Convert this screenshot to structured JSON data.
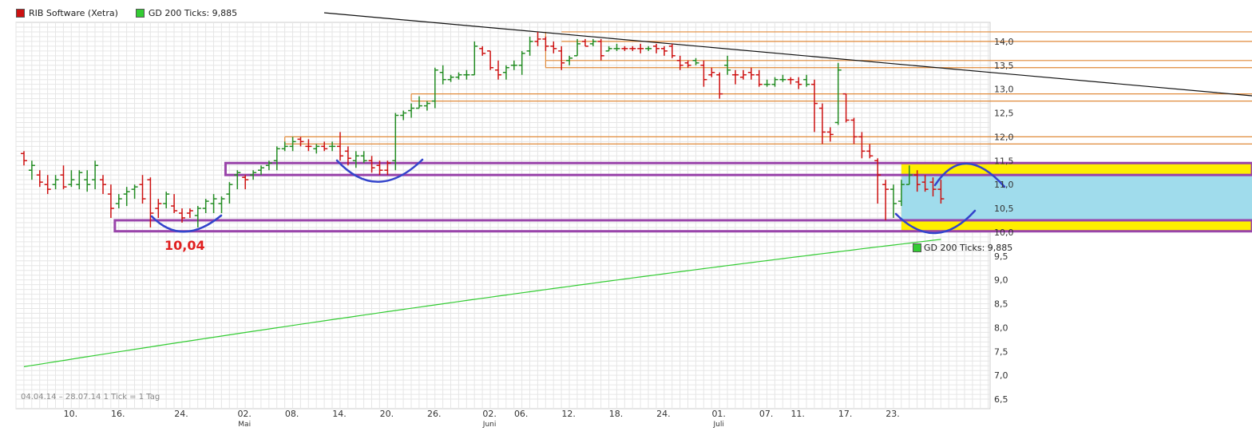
{
  "legend": {
    "items": [
      {
        "label": "RIB Software (Xetra)",
        "color": "#cc1111"
      },
      {
        "label": "GD 200 Ticks: 9,885",
        "color": "#33cc33"
      }
    ]
  },
  "footer": {
    "range_text": "04.04.14 – 28.07.14   1 Tick = 1 Tag"
  },
  "annotation": {
    "low_label": "10,04"
  },
  "sma_label": {
    "text": "GD 200 Ticks: 9,885"
  },
  "chart_data": {
    "type": "ohlc",
    "title": "RIB Software (Xetra)",
    "y_range": [
      6.3,
      14.4
    ],
    "y_ticks": [
      "6,5",
      "7,0",
      "7,5",
      "8,0",
      "8,5",
      "9,0",
      "9,5",
      "10,0",
      "10,5",
      "11,0",
      "11,5",
      "12,0",
      "12,5",
      "13,0",
      "13,5",
      "14,0"
    ],
    "x_ticks": [
      {
        "label": "10.",
        "day": 6
      },
      {
        "label": "16.",
        "day": 12
      },
      {
        "label": "24.",
        "day": 20
      },
      {
        "label": "02.",
        "day": 28,
        "month": "Mai"
      },
      {
        "label": "08.",
        "day": 34
      },
      {
        "label": "14.",
        "day": 40
      },
      {
        "label": "20.",
        "day": 46
      },
      {
        "label": "26.",
        "day": 52
      },
      {
        "label": "02.",
        "day": 59,
        "month": "Juni"
      },
      {
        "label": "06.",
        "day": 63
      },
      {
        "label": "12.",
        "day": 69
      },
      {
        "label": "18.",
        "day": 75
      },
      {
        "label": "24.",
        "day": 81
      },
      {
        "label": "01.",
        "day": 88,
        "month": "Juli"
      },
      {
        "label": "07.",
        "day": 94
      },
      {
        "label": "11.",
        "day": 98
      },
      {
        "label": "17.",
        "day": 104
      },
      {
        "label": "23.",
        "day": 110
      }
    ],
    "grid": true,
    "bars": [
      {
        "o": 11.65,
        "h": 11.7,
        "l": 11.4,
        "c": 11.5,
        "up": false
      },
      {
        "o": 11.3,
        "h": 11.5,
        "l": 11.1,
        "c": 11.4,
        "up": true
      },
      {
        "o": 11.2,
        "h": 11.3,
        "l": 10.95,
        "c": 11.05,
        "up": false
      },
      {
        "o": 11.0,
        "h": 11.2,
        "l": 10.8,
        "c": 10.9,
        "up": false
      },
      {
        "o": 11.0,
        "h": 11.2,
        "l": 10.9,
        "c": 11.1,
        "up": true
      },
      {
        "o": 11.2,
        "h": 11.4,
        "l": 10.9,
        "c": 10.95,
        "up": false
      },
      {
        "o": 11.0,
        "h": 11.3,
        "l": 10.95,
        "c": 11.1,
        "up": true
      },
      {
        "o": 11.0,
        "h": 11.3,
        "l": 10.9,
        "c": 11.25,
        "up": true
      },
      {
        "o": 11.1,
        "h": 11.3,
        "l": 10.85,
        "c": 11.0,
        "up": true
      },
      {
        "o": 11.1,
        "h": 11.5,
        "l": 10.9,
        "c": 11.4,
        "up": true
      },
      {
        "o": 11.1,
        "h": 11.2,
        "l": 10.8,
        "c": 11.0,
        "up": false
      },
      {
        "o": 10.8,
        "h": 11.0,
        "l": 10.3,
        "c": 10.5,
        "up": false
      },
      {
        "o": 10.6,
        "h": 10.8,
        "l": 10.5,
        "c": 10.7,
        "up": true
      },
      {
        "o": 10.8,
        "h": 10.95,
        "l": 10.55,
        "c": 10.85,
        "up": true
      },
      {
        "o": 10.9,
        "h": 11.0,
        "l": 10.7,
        "c": 10.95,
        "up": true
      },
      {
        "o": 11.0,
        "h": 11.2,
        "l": 10.6,
        "c": 10.7,
        "up": false
      },
      {
        "o": 11.1,
        "h": 11.15,
        "l": 10.1,
        "c": 10.4,
        "up": false
      },
      {
        "o": 10.5,
        "h": 10.7,
        "l": 10.3,
        "c": 10.6,
        "up": false
      },
      {
        "o": 10.6,
        "h": 10.85,
        "l": 10.5,
        "c": 10.8,
        "up": true
      },
      {
        "o": 10.55,
        "h": 10.8,
        "l": 10.4,
        "c": 10.45,
        "up": false
      },
      {
        "o": 10.4,
        "h": 10.5,
        "l": 10.2,
        "c": 10.3,
        "up": false
      },
      {
        "o": 10.4,
        "h": 10.5,
        "l": 10.3,
        "c": 10.45,
        "up": false
      },
      {
        "o": 10.35,
        "h": 10.55,
        "l": 10.1,
        "c": 10.5,
        "up": true
      },
      {
        "o": 10.5,
        "h": 10.7,
        "l": 10.4,
        "c": 10.65,
        "up": true
      },
      {
        "o": 10.6,
        "h": 10.8,
        "l": 10.4,
        "c": 10.7,
        "up": true
      },
      {
        "o": 10.6,
        "h": 10.75,
        "l": 10.4,
        "c": 10.7,
        "up": true
      },
      {
        "o": 10.8,
        "h": 11.05,
        "l": 10.6,
        "c": 11.0,
        "up": true
      },
      {
        "o": 11.2,
        "h": 11.3,
        "l": 10.9,
        "c": 11.25,
        "up": true
      },
      {
        "o": 11.15,
        "h": 11.2,
        "l": 10.9,
        "c": 11.1,
        "up": false
      },
      {
        "o": 11.2,
        "h": 11.3,
        "l": 11.1,
        "c": 11.25,
        "up": true
      },
      {
        "o": 11.3,
        "h": 11.4,
        "l": 11.2,
        "c": 11.35,
        "up": true
      },
      {
        "o": 11.4,
        "h": 11.5,
        "l": 11.3,
        "c": 11.45,
        "up": true
      },
      {
        "o": 11.5,
        "h": 11.8,
        "l": 11.3,
        "c": 11.75,
        "up": true
      },
      {
        "o": 11.75,
        "h": 11.9,
        "l": 11.7,
        "c": 11.8,
        "up": true
      },
      {
        "o": 11.8,
        "h": 12.0,
        "l": 11.7,
        "c": 11.9,
        "up": true
      },
      {
        "o": 11.95,
        "h": 12.0,
        "l": 11.8,
        "c": 11.9,
        "up": false
      },
      {
        "o": 11.8,
        "h": 11.95,
        "l": 11.7,
        "c": 11.8,
        "up": false
      },
      {
        "o": 11.75,
        "h": 11.85,
        "l": 11.65,
        "c": 11.8,
        "up": true
      },
      {
        "o": 11.8,
        "h": 11.9,
        "l": 11.7,
        "c": 11.75,
        "up": false
      },
      {
        "o": 11.8,
        "h": 11.9,
        "l": 11.7,
        "c": 11.8,
        "up": true
      },
      {
        "o": 11.8,
        "h": 12.1,
        "l": 11.5,
        "c": 11.6,
        "up": false
      },
      {
        "o": 11.7,
        "h": 11.8,
        "l": 11.4,
        "c": 11.55,
        "up": false
      },
      {
        "o": 11.5,
        "h": 11.7,
        "l": 11.35,
        "c": 11.6,
        "up": true
      },
      {
        "o": 11.6,
        "h": 11.7,
        "l": 11.45,
        "c": 11.5,
        "up": true
      },
      {
        "o": 11.5,
        "h": 11.6,
        "l": 11.25,
        "c": 11.35,
        "up": false
      },
      {
        "o": 11.4,
        "h": 11.5,
        "l": 11.2,
        "c": 11.3,
        "up": false
      },
      {
        "o": 11.3,
        "h": 11.5,
        "l": 11.2,
        "c": 11.45,
        "up": false
      },
      {
        "o": 11.5,
        "h": 12.5,
        "l": 11.3,
        "c": 12.45,
        "up": true
      },
      {
        "o": 12.45,
        "h": 12.55,
        "l": 12.35,
        "c": 12.5,
        "up": true
      },
      {
        "o": 12.55,
        "h": 12.7,
        "l": 12.4,
        "c": 12.6,
        "up": true
      },
      {
        "o": 12.6,
        "h": 12.85,
        "l": 12.6,
        "c": 12.65,
        "up": true
      },
      {
        "o": 12.65,
        "h": 12.75,
        "l": 12.55,
        "c": 12.7,
        "up": true
      },
      {
        "o": 12.75,
        "h": 13.45,
        "l": 12.6,
        "c": 13.4,
        "up": true
      },
      {
        "o": 13.35,
        "h": 13.5,
        "l": 13.1,
        "c": 13.2,
        "up": true
      },
      {
        "o": 13.2,
        "h": 13.3,
        "l": 13.15,
        "c": 13.25,
        "up": true
      },
      {
        "o": 13.25,
        "h": 13.35,
        "l": 13.2,
        "c": 13.3,
        "up": true
      },
      {
        "o": 13.3,
        "h": 13.4,
        "l": 13.2,
        "c": 13.3,
        "up": true
      },
      {
        "o": 13.3,
        "h": 14.0,
        "l": 13.3,
        "c": 13.9,
        "up": true
      },
      {
        "o": 13.85,
        "h": 13.9,
        "l": 13.7,
        "c": 13.75,
        "up": false
      },
      {
        "o": 13.8,
        "h": 13.8,
        "l": 13.4,
        "c": 13.45,
        "up": false
      },
      {
        "o": 13.4,
        "h": 13.6,
        "l": 13.2,
        "c": 13.3,
        "up": false
      },
      {
        "o": 13.35,
        "h": 13.5,
        "l": 13.2,
        "c": 13.45,
        "up": true
      },
      {
        "o": 13.5,
        "h": 13.6,
        "l": 13.4,
        "c": 13.5,
        "up": true
      },
      {
        "o": 13.5,
        "h": 13.8,
        "l": 13.3,
        "c": 13.75,
        "up": true
      },
      {
        "o": 13.8,
        "h": 14.1,
        "l": 13.7,
        "c": 14.0,
        "up": true
      },
      {
        "o": 14.0,
        "h": 14.2,
        "l": 13.9,
        "c": 14.05,
        "up": false
      },
      {
        "o": 14.05,
        "h": 14.1,
        "l": 13.8,
        "c": 13.9,
        "up": false
      },
      {
        "o": 13.9,
        "h": 14.0,
        "l": 13.75,
        "c": 13.85,
        "up": false
      },
      {
        "o": 13.8,
        "h": 13.9,
        "l": 13.4,
        "c": 13.55,
        "up": false
      },
      {
        "o": 13.6,
        "h": 13.7,
        "l": 13.5,
        "c": 13.65,
        "up": true
      },
      {
        "o": 13.7,
        "h": 14.05,
        "l": 13.7,
        "c": 13.95,
        "up": true
      },
      {
        "o": 14.0,
        "h": 14.05,
        "l": 13.9,
        "c": 13.9,
        "up": false
      },
      {
        "o": 13.95,
        "h": 14.05,
        "l": 13.9,
        "c": 14.0,
        "up": true
      },
      {
        "o": 14.0,
        "h": 14.05,
        "l": 13.6,
        "c": 13.7,
        "up": false
      },
      {
        "o": 13.8,
        "h": 13.9,
        "l": 13.8,
        "c": 13.85,
        "up": true
      },
      {
        "o": 13.85,
        "h": 13.95,
        "l": 13.8,
        "c": 13.85,
        "up": true
      },
      {
        "o": 13.85,
        "h": 13.9,
        "l": 13.8,
        "c": 13.85,
        "up": false
      },
      {
        "o": 13.85,
        "h": 13.9,
        "l": 13.8,
        "c": 13.85,
        "up": false
      },
      {
        "o": 13.85,
        "h": 13.95,
        "l": 13.75,
        "c": 13.85,
        "up": false
      },
      {
        "o": 13.85,
        "h": 13.9,
        "l": 13.8,
        "c": 13.85,
        "up": true
      },
      {
        "o": 13.9,
        "h": 13.95,
        "l": 13.75,
        "c": 13.85,
        "up": false
      },
      {
        "o": 13.85,
        "h": 13.9,
        "l": 13.7,
        "c": 13.8,
        "up": false
      },
      {
        "o": 13.9,
        "h": 13.95,
        "l": 13.65,
        "c": 13.7,
        "up": false
      },
      {
        "o": 13.6,
        "h": 13.7,
        "l": 13.4,
        "c": 13.5,
        "up": false
      },
      {
        "o": 13.55,
        "h": 13.6,
        "l": 13.45,
        "c": 13.5,
        "up": false
      },
      {
        "o": 13.6,
        "h": 13.65,
        "l": 13.5,
        "c": 13.55,
        "up": true
      },
      {
        "o": 13.5,
        "h": 13.6,
        "l": 13.05,
        "c": 13.2,
        "up": false
      },
      {
        "o": 13.3,
        "h": 13.45,
        "l": 13.25,
        "c": 13.35,
        "up": false
      },
      {
        "o": 13.3,
        "h": 13.35,
        "l": 12.8,
        "c": 12.9,
        "up": false
      },
      {
        "o": 13.5,
        "h": 13.7,
        "l": 13.3,
        "c": 13.4,
        "up": true
      },
      {
        "o": 13.3,
        "h": 13.4,
        "l": 13.1,
        "c": 13.3,
        "up": false
      },
      {
        "o": 13.25,
        "h": 13.4,
        "l": 13.2,
        "c": 13.3,
        "up": false
      },
      {
        "o": 13.35,
        "h": 13.45,
        "l": 13.2,
        "c": 13.3,
        "up": false
      },
      {
        "o": 13.3,
        "h": 13.4,
        "l": 13.05,
        "c": 13.1,
        "up": false
      },
      {
        "o": 13.1,
        "h": 13.2,
        "l": 13.05,
        "c": 13.1,
        "up": true
      },
      {
        "o": 13.1,
        "h": 13.25,
        "l": 13.05,
        "c": 13.2,
        "up": true
      },
      {
        "o": 13.2,
        "h": 13.3,
        "l": 13.15,
        "c": 13.2,
        "up": true
      },
      {
        "o": 13.2,
        "h": 13.25,
        "l": 13.1,
        "c": 13.2,
        "up": false
      },
      {
        "o": 13.15,
        "h": 13.25,
        "l": 13.0,
        "c": 13.1,
        "up": false
      },
      {
        "o": 13.2,
        "h": 13.3,
        "l": 13.05,
        "c": 13.1,
        "up": true
      },
      {
        "o": 13.1,
        "h": 13.2,
        "l": 12.1,
        "c": 12.7,
        "up": false
      },
      {
        "o": 12.6,
        "h": 12.7,
        "l": 11.85,
        "c": 12.1,
        "up": false
      },
      {
        "o": 12.1,
        "h": 12.2,
        "l": 11.9,
        "c": 12.05,
        "up": false
      },
      {
        "o": 12.3,
        "h": 13.55,
        "l": 12.25,
        "c": 13.4,
        "up": true
      },
      {
        "o": 12.9,
        "h": 12.9,
        "l": 12.3,
        "c": 12.35,
        "up": false
      },
      {
        "o": 12.35,
        "h": 12.4,
        "l": 11.85,
        "c": 12.0,
        "up": false
      },
      {
        "o": 12.0,
        "h": 12.1,
        "l": 11.55,
        "c": 11.7,
        "up": false
      },
      {
        "o": 11.7,
        "h": 11.85,
        "l": 11.55,
        "c": 11.6,
        "up": false
      },
      {
        "o": 11.5,
        "h": 11.55,
        "l": 10.6,
        "c": 11.2,
        "up": false
      },
      {
        "o": 11.0,
        "h": 11.1,
        "l": 10.25,
        "c": 10.9,
        "up": false
      },
      {
        "o": 10.9,
        "h": 11.0,
        "l": 10.3,
        "c": 10.6,
        "up": true
      },
      {
        "o": 10.65,
        "h": 11.1,
        "l": 10.55,
        "c": 11.0,
        "up": true
      },
      {
        "o": 11.0,
        "h": 11.4,
        "l": 11.0,
        "c": 11.2,
        "up": true
      },
      {
        "o": 11.2,
        "h": 11.3,
        "l": 10.85,
        "c": 11.0,
        "up": false
      },
      {
        "o": 11.05,
        "h": 11.2,
        "l": 10.85,
        "c": 10.9,
        "up": false
      },
      {
        "o": 11.05,
        "h": 11.15,
        "l": 10.75,
        "c": 10.9,
        "up": false
      },
      {
        "o": 10.9,
        "h": 11.1,
        "l": 10.6,
        "c": 10.7,
        "up": false
      }
    ],
    "sma": {
      "name": "GD 200 Ticks",
      "last": 9.885,
      "start": 7.18,
      "end": 9.85
    },
    "resistance_lines": [
      14.2,
      14.0,
      13.6,
      13.45,
      12.9,
      12.75,
      12.0,
      11.85
    ],
    "zones": [
      {
        "low": 11.2,
        "high": 11.45
      },
      {
        "low": 10.02,
        "high": 10.25
      }
    ],
    "highlight_box": {
      "low": 10.02,
      "high": 11.45,
      "fill": "#a0dcec",
      "band": "#ffee00"
    }
  }
}
